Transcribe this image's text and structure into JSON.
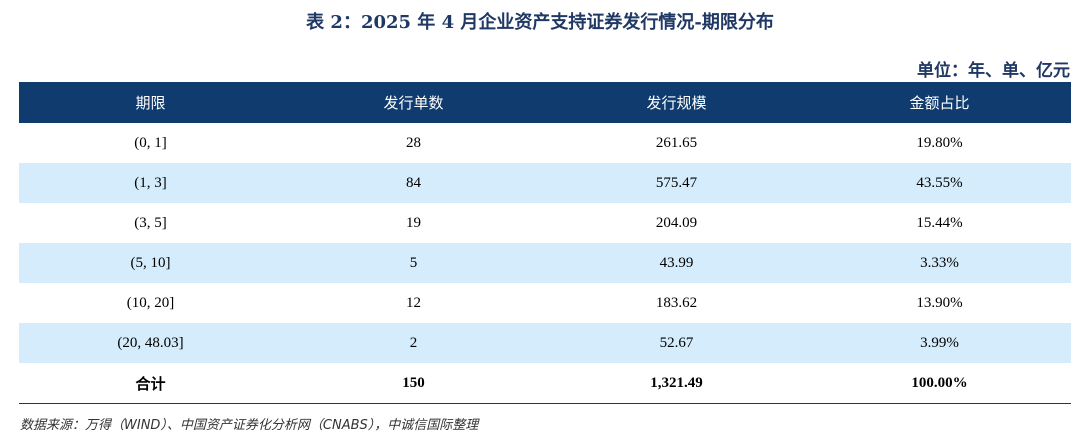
{
  "title": "表 2：2025 年 4 月企业资产支持证券发行情况-期限分布",
  "unit": "单位：年、单、亿元",
  "table": {
    "headers": [
      "期限",
      "发行单数",
      "发行规模",
      "金额占比"
    ],
    "rows": [
      [
        "(0, 1]",
        "28",
        "261.65",
        "19.80%"
      ],
      [
        "(1, 3]",
        "84",
        "575.47",
        "43.55%"
      ],
      [
        "(3, 5]",
        "19",
        "204.09",
        "15.44%"
      ],
      [
        "(5, 10]",
        "5",
        "43.99",
        "3.33%"
      ],
      [
        "(10, 20]",
        "12",
        "183.62",
        "13.90%"
      ],
      [
        "(20, 48.03]",
        "2",
        "52.67",
        "3.99%"
      ]
    ],
    "total": [
      "合计",
      "150",
      "1,321.49",
      "100.00%"
    ]
  },
  "source": "数据来源：万得（WIND）、中国资产证券化分析网（CNABS），中诚信国际整理",
  "colors": {
    "header_bg": "#0f3b6e",
    "alt_row_bg": "#d4ecfb",
    "title_color": "#1f3864"
  }
}
